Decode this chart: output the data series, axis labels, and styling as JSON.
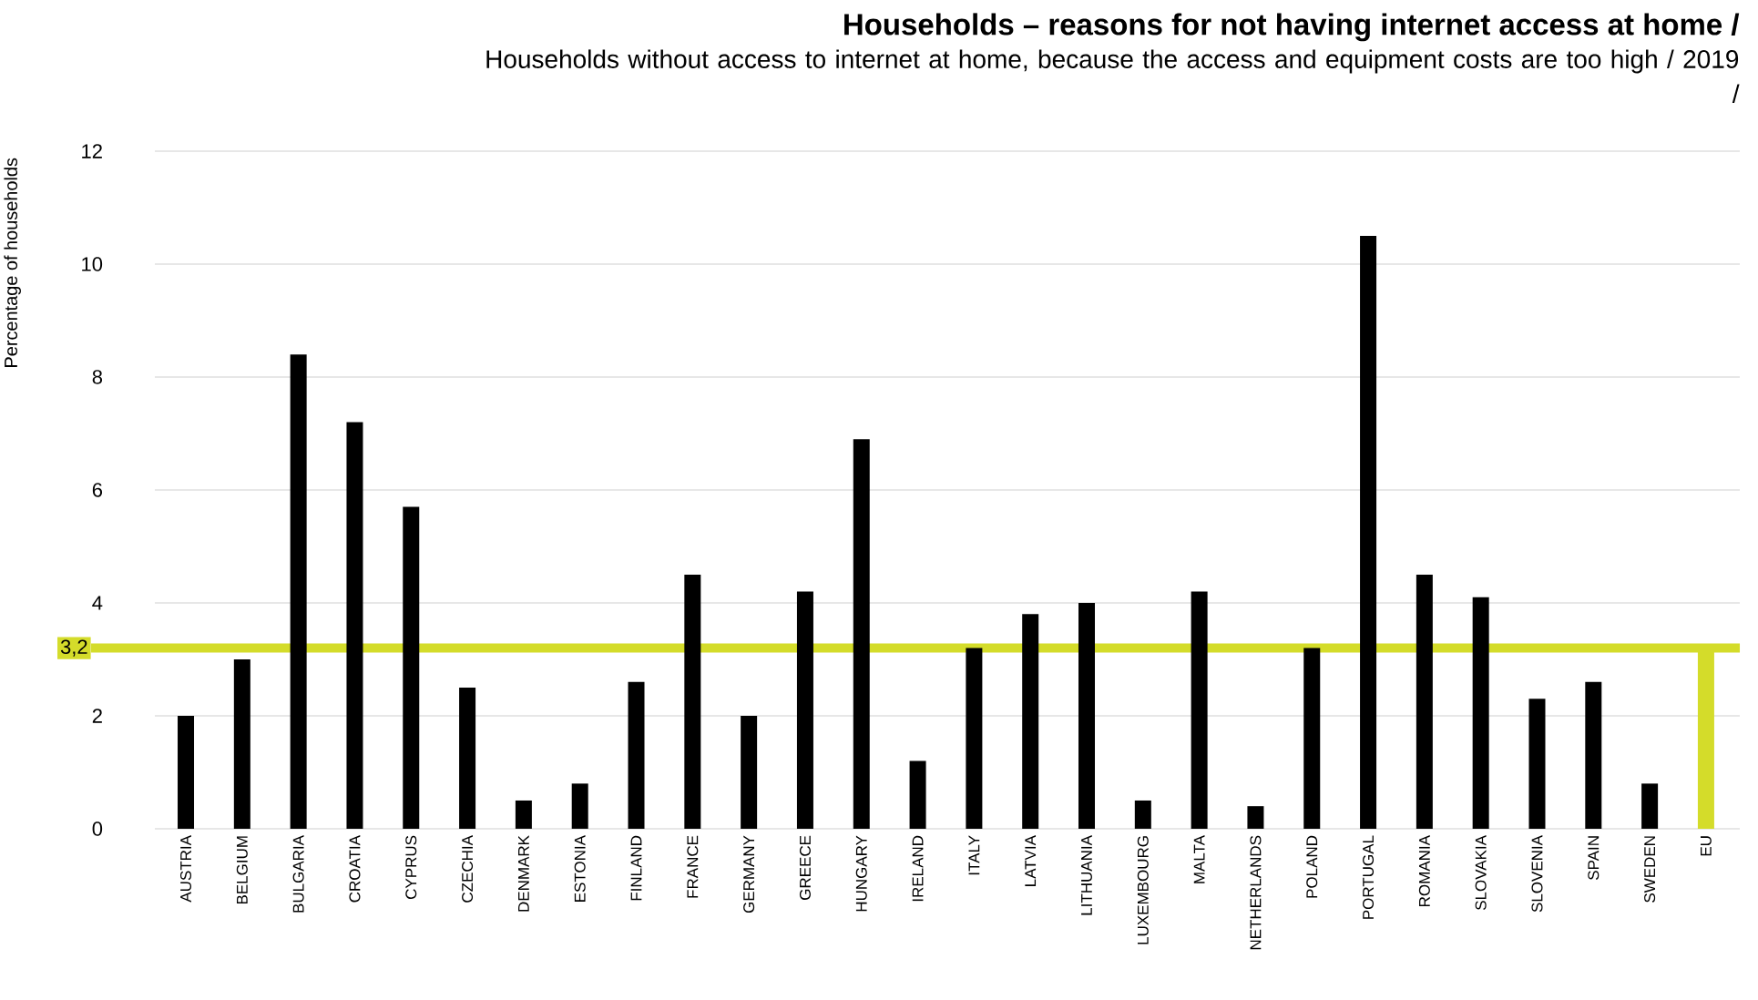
{
  "chart_data": {
    "type": "bar",
    "title": "Households – reasons for not having internet access at home /",
    "subtitle": "Households without access to internet at home, because the access and equipment costs are too high / 2019 /",
    "ylabel": "Percentage of households",
    "categories": [
      "AUSTRIA",
      "BELGIUM",
      "BULGARIA",
      "CROATIA",
      "CYPRUS",
      "CZECHIA",
      "DENMARK",
      "ESTONIA",
      "FINLAND",
      "FRANCE",
      "GERMANY",
      "GREECE",
      "HUNGARY",
      "IRELAND",
      "ITALY",
      "LATVIA",
      "LITHUANIA",
      "LUXEMBOURG",
      "MALTA",
      "NETHERLANDS",
      "POLAND",
      "PORTUGAL",
      "ROMANIA",
      "SLOVAKIA",
      "SLOVENIA",
      "SPAIN",
      "SWEDEN",
      "EU"
    ],
    "values": [
      2.0,
      3.0,
      8.4,
      7.2,
      5.7,
      2.5,
      0.5,
      0.8,
      2.6,
      4.5,
      2.0,
      4.2,
      6.9,
      1.2,
      3.2,
      3.8,
      4.0,
      0.5,
      4.2,
      0.4,
      3.2,
      10.5,
      4.5,
      4.1,
      2.3,
      2.6,
      0.8,
      3.2
    ],
    "colors": [
      "#000000",
      "#000000",
      "#000000",
      "#000000",
      "#000000",
      "#000000",
      "#000000",
      "#000000",
      "#000000",
      "#000000",
      "#000000",
      "#000000",
      "#000000",
      "#000000",
      "#000000",
      "#000000",
      "#000000",
      "#000000",
      "#000000",
      "#000000",
      "#000000",
      "#000000",
      "#000000",
      "#000000",
      "#000000",
      "#000000",
      "#000000",
      "#d4dc2a"
    ],
    "ylim": [
      0,
      12
    ],
    "yticks": [
      0,
      2,
      4,
      6,
      8,
      10,
      12
    ],
    "grid": "y",
    "ref_lines": [
      {
        "axis": "y",
        "value": 3.2,
        "label": "3,2",
        "color": "#d4dc2a"
      }
    ]
  }
}
